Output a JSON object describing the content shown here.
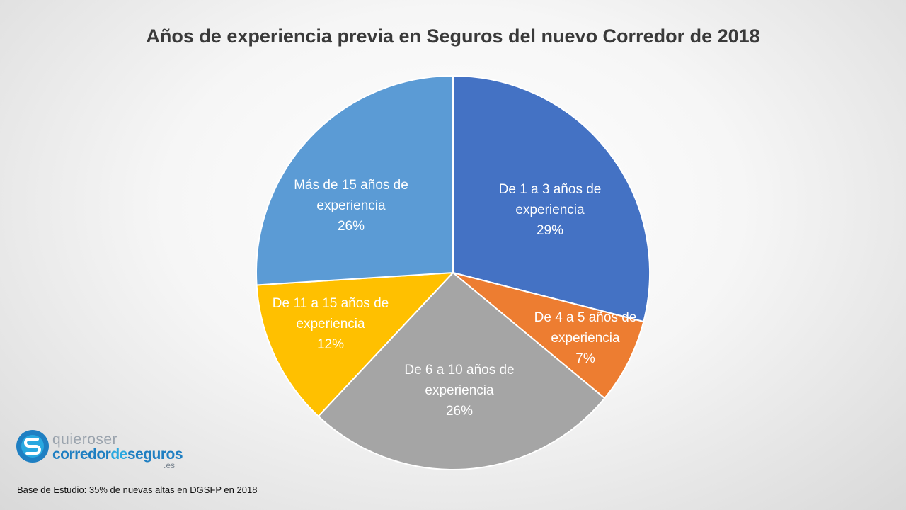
{
  "chart_data": {
    "type": "pie",
    "title": "Años de experiencia previa en Seguros del nuevo Corredor de 2018",
    "slices": [
      {
        "label_lines": [
          "De 1 a 3 años de",
          "experiencia"
        ],
        "percent_label": "29%",
        "value": 29,
        "color": "#4472C4"
      },
      {
        "label_lines": [
          "De 4 a 5 años de",
          "experiencia"
        ],
        "percent_label": "7%",
        "value": 7,
        "color": "#ED7D31"
      },
      {
        "label_lines": [
          "De 6 a 10 años de",
          "experiencia"
        ],
        "percent_label": "26%",
        "value": 26,
        "color": "#A5A5A5"
      },
      {
        "label_lines": [
          "De 11 a 15 años de",
          "experiencia"
        ],
        "percent_label": "12%",
        "value": 12,
        "color": "#FFC000"
      },
      {
        "label_lines": [
          "Más de 15 años de",
          "experiencia"
        ],
        "percent_label": "26%",
        "value": 26,
        "color": "#5B9BD5"
      }
    ],
    "start_angle": "12 o'clock",
    "direction": "clockwise",
    "legend": "none"
  },
  "logo": {
    "line1": "quieroser",
    "line2_a": "corredor",
    "line2_b": "de",
    "line2_c": "seguros",
    "line3": ".es",
    "colors": {
      "dark": "#1f7fc2",
      "light": "#29a8e0",
      "grey": "#9aa3ad"
    }
  },
  "footnote": "Base de Estudio: 35% de nuevas altas en DGSFP  en 2018"
}
